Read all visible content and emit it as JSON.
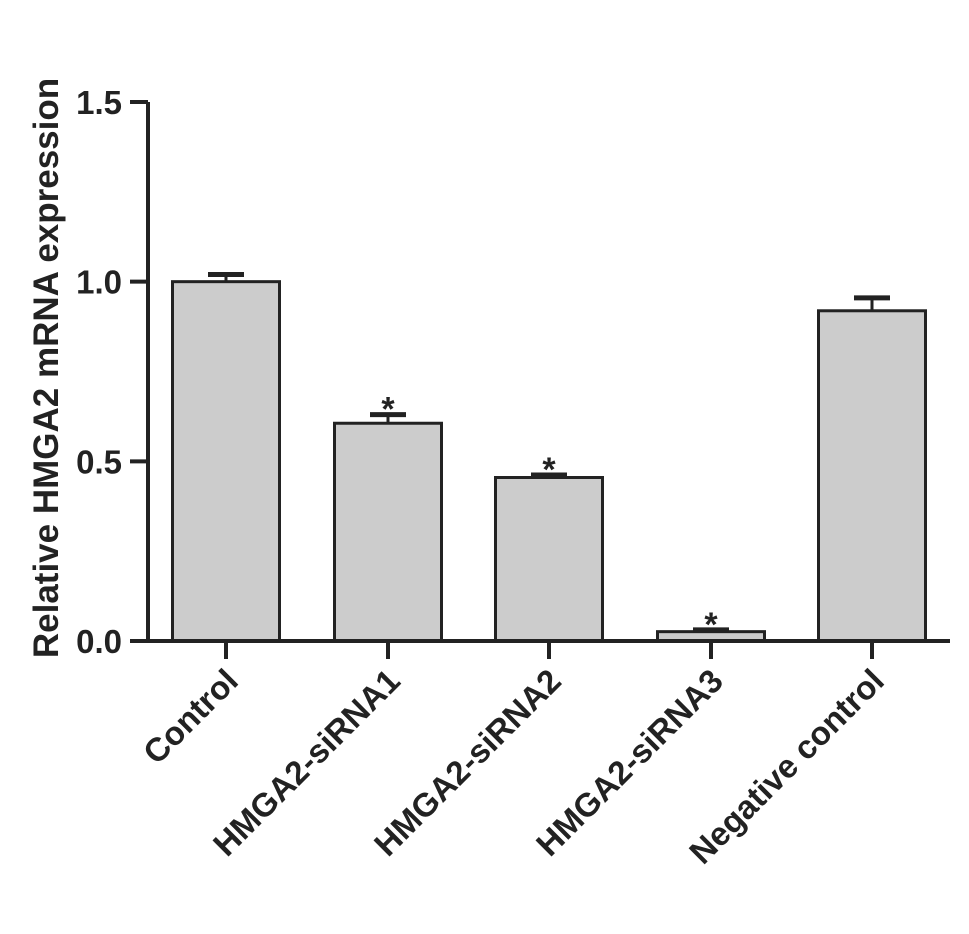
{
  "chart_data": {
    "type": "bar",
    "title": "",
    "xlabel": "",
    "ylabel": "Relative HMGA2 mRNA expression",
    "categories": [
      "Control",
      "HMGA2-siRNA1",
      "HMGA2-siRNA2",
      "HMGA2-siRNA3",
      "Negative control"
    ],
    "values": [
      1.0,
      0.606,
      0.455,
      0.026,
      0.919
    ],
    "error_upper": [
      1.02,
      0.63,
      0.462,
      0.031,
      0.955
    ],
    "significance": [
      "",
      "*",
      "*",
      "*",
      ""
    ],
    "ylim": [
      0,
      1.5
    ],
    "yticks": [
      0.0,
      0.5,
      1.0,
      1.5
    ],
    "ytick_labels": [
      "0.0",
      "0.5",
      "1.0",
      "1.5"
    ],
    "grid": false,
    "bar_color": "#cccccc",
    "edge_color": "#222222"
  }
}
